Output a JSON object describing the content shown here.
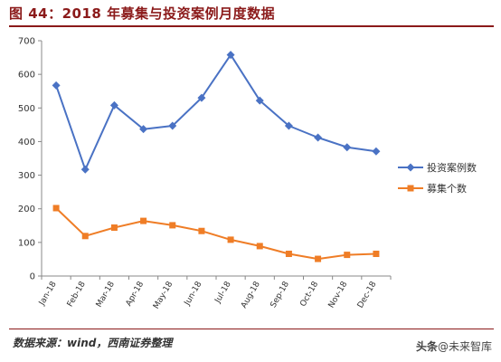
{
  "title": "图 44：2018 年募集与投资案例月度数据",
  "source": "数据来源：wind，西南证券整理",
  "watermark": {
    "brand": "头条",
    "handle": "@未来智库"
  },
  "colors": {
    "title": "#8b1a1a",
    "series_invest": "#4a72c4",
    "series_raise": "#ef7d26",
    "axis": "#888888"
  },
  "chart_data": {
    "type": "line",
    "title": "",
    "xlabel": "",
    "ylabel": "",
    "ylim": [
      0,
      700
    ],
    "yticks": [
      0,
      100,
      200,
      300,
      400,
      500,
      600,
      700
    ],
    "grid": false,
    "legend_position": "right",
    "categories": [
      "Jan-18",
      "Feb-18",
      "Mar-18",
      "Apr-18",
      "May-18",
      "Jun-18",
      "Jul-18",
      "Aug-18",
      "Sep-18",
      "Oct-18",
      "Nov-18",
      "Dec-18"
    ],
    "series": [
      {
        "name": "投资案例数",
        "marker": "diamond",
        "color": "#4a72c4",
        "values": [
          567,
          317,
          508,
          437,
          447,
          530,
          658,
          522,
          447,
          412,
          383,
          371
        ]
      },
      {
        "name": "募集个数",
        "marker": "square",
        "color": "#ef7d26",
        "values": [
          202,
          119,
          144,
          164,
          151,
          134,
          108,
          89,
          66,
          51,
          63,
          66
        ]
      }
    ]
  }
}
